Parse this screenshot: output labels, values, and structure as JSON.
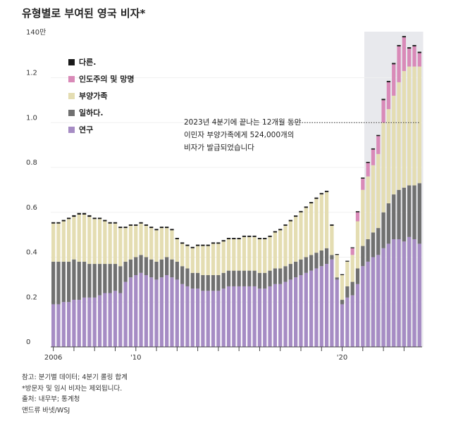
{
  "chart_data": {
    "type": "bar",
    "stacked": true,
    "title": "유형별로 부여된 영국 비자*",
    "y_unit_label": "140만",
    "ylim": [
      0,
      1.4
    ],
    "yticks": [
      {
        "value": 0,
        "label": "0"
      },
      {
        "value": 0.2,
        "label": "0.2"
      },
      {
        "value": 0.4,
        "label": "0.4"
      },
      {
        "value": 0.6,
        "label": "0.6"
      },
      {
        "value": 0.8,
        "label": "0.8"
      },
      {
        "value": 1.0,
        "label": "1.0"
      },
      {
        "value": 1.2,
        "label": "1.2"
      }
    ],
    "x_start_year": 2006,
    "x_tick_labels": [
      {
        "year": 2006,
        "label": "2006"
      },
      {
        "year": 2010,
        "label": "'10"
      },
      {
        "year": 2020,
        "label": "'20"
      }
    ],
    "highlight_period": {
      "from": "2021 Q2",
      "to": "2023 Q4"
    },
    "series": [
      {
        "name": "연구",
        "color": "#a68cc4",
        "values": [
          0.19,
          0.19,
          0.2,
          0.2,
          0.21,
          0.21,
          0.22,
          0.22,
          0.22,
          0.23,
          0.24,
          0.24,
          0.25,
          0.24,
          0.29,
          0.31,
          0.32,
          0.33,
          0.32,
          0.31,
          0.3,
          0.31,
          0.32,
          0.31,
          0.3,
          0.28,
          0.27,
          0.26,
          0.26,
          0.25,
          0.25,
          0.25,
          0.25,
          0.26,
          0.27,
          0.27,
          0.27,
          0.27,
          0.27,
          0.27,
          0.26,
          0.26,
          0.27,
          0.28,
          0.28,
          0.29,
          0.3,
          0.31,
          0.32,
          0.33,
          0.34,
          0.35,
          0.36,
          0.37,
          0.39,
          0.3,
          0.19,
          0.22,
          0.23,
          0.28,
          0.36,
          0.38,
          0.4,
          0.41,
          0.44,
          0.46,
          0.48,
          0.48,
          0.47,
          0.49,
          0.48,
          0.46
        ]
      },
      {
        "name": "일하다.",
        "color": "#707070",
        "values": [
          0.19,
          0.19,
          0.18,
          0.18,
          0.18,
          0.17,
          0.16,
          0.15,
          0.15,
          0.14,
          0.13,
          0.13,
          0.12,
          0.12,
          0.09,
          0.08,
          0.08,
          0.08,
          0.08,
          0.08,
          0.08,
          0.08,
          0.08,
          0.08,
          0.08,
          0.08,
          0.08,
          0.07,
          0.07,
          0.07,
          0.07,
          0.07,
          0.07,
          0.07,
          0.07,
          0.07,
          0.07,
          0.07,
          0.07,
          0.07,
          0.07,
          0.07,
          0.07,
          0.07,
          0.07,
          0.07,
          0.07,
          0.07,
          0.07,
          0.07,
          0.07,
          0.07,
          0.07,
          0.07,
          0.02,
          0.01,
          0.02,
          0.05,
          0.06,
          0.07,
          0.09,
          0.1,
          0.11,
          0.12,
          0.16,
          0.18,
          0.2,
          0.22,
          0.24,
          0.23,
          0.24,
          0.27
        ]
      },
      {
        "name": "부양가족",
        "color": "#e4ddb2",
        "values": [
          0.17,
          0.17,
          0.18,
          0.19,
          0.19,
          0.21,
          0.21,
          0.21,
          0.2,
          0.2,
          0.19,
          0.18,
          0.18,
          0.17,
          0.15,
          0.15,
          0.14,
          0.14,
          0.14,
          0.14,
          0.14,
          0.14,
          0.13,
          0.13,
          0.1,
          0.1,
          0.1,
          0.11,
          0.12,
          0.13,
          0.13,
          0.14,
          0.14,
          0.14,
          0.14,
          0.14,
          0.14,
          0.15,
          0.15,
          0.15,
          0.15,
          0.15,
          0.15,
          0.16,
          0.17,
          0.18,
          0.19,
          0.2,
          0.21,
          0.22,
          0.23,
          0.24,
          0.25,
          0.25,
          0.13,
          0.1,
          0.11,
          0.11,
          0.12,
          0.21,
          0.25,
          0.28,
          0.3,
          0.33,
          0.4,
          0.42,
          0.44,
          0.48,
          0.52,
          0.53,
          0.53,
          0.52
        ]
      },
      {
        "name": "인도주의 및 망명",
        "color": "#d98ab8",
        "values": [
          0,
          0,
          0,
          0,
          0,
          0,
          0,
          0,
          0,
          0,
          0,
          0,
          0,
          0,
          0,
          0,
          0,
          0,
          0,
          0,
          0,
          0,
          0,
          0,
          0,
          0,
          0,
          0,
          0,
          0,
          0,
          0,
          0,
          0,
          0,
          0,
          0,
          0,
          0,
          0,
          0,
          0,
          0,
          0,
          0,
          0,
          0,
          0,
          0,
          0,
          0,
          0,
          0,
          0,
          0,
          0,
          0,
          0,
          0.03,
          0.04,
          0.05,
          0.06,
          0.07,
          0.08,
          0.1,
          0.12,
          0.14,
          0.16,
          0.15,
          0.08,
          0.09,
          0.06
        ]
      },
      {
        "name": "다른.",
        "color": "#1a1a1a",
        "values": [
          0.006,
          0.006,
          0.006,
          0.006,
          0.007,
          0.007,
          0.007,
          0.007,
          0.006,
          0.006,
          0.006,
          0.006,
          0.006,
          0.006,
          0.006,
          0.006,
          0.006,
          0.006,
          0.006,
          0.006,
          0.006,
          0.006,
          0.006,
          0.006,
          0.006,
          0.006,
          0.006,
          0.006,
          0.006,
          0.006,
          0.006,
          0.006,
          0.006,
          0.006,
          0.006,
          0.006,
          0.006,
          0.006,
          0.006,
          0.006,
          0.006,
          0.006,
          0.006,
          0.006,
          0.006,
          0.006,
          0.006,
          0.006,
          0.006,
          0.006,
          0.006,
          0.006,
          0.006,
          0.006,
          0.006,
          0.004,
          0.004,
          0.004,
          0.004,
          0.005,
          0.005,
          0.005,
          0.005,
          0.005,
          0.006,
          0.006,
          0.006,
          0.006,
          0.006,
          0.006,
          0.006,
          0.006
        ]
      }
    ],
    "annotation": {
      "lines": [
        "2023년 4분기에 끝나는 12개월 동안",
        "이민자 부양가족에게 524,000개의",
        "비자가 발급되었습니다"
      ],
      "target_value": 1.0
    }
  },
  "legend": [
    {
      "label": "다른.",
      "color": "#1a1a1a"
    },
    {
      "label": "인도주의 및 망명",
      "color": "#d98ab8"
    },
    {
      "label": "부양가족",
      "color": "#e4ddb2"
    },
    {
      "label": "일하다.",
      "color": "#707070"
    },
    {
      "label": "연구",
      "color": "#a68cc4"
    }
  ],
  "footer": {
    "note1": "참고: 분기별 데이터; 4분기 롤링 합계",
    "note2": "*방문자 및 임시 비자는 제외됩니다.",
    "source": "출처: 내무부; 통계청",
    "credit": "앤드류 바넷/WSJ"
  }
}
